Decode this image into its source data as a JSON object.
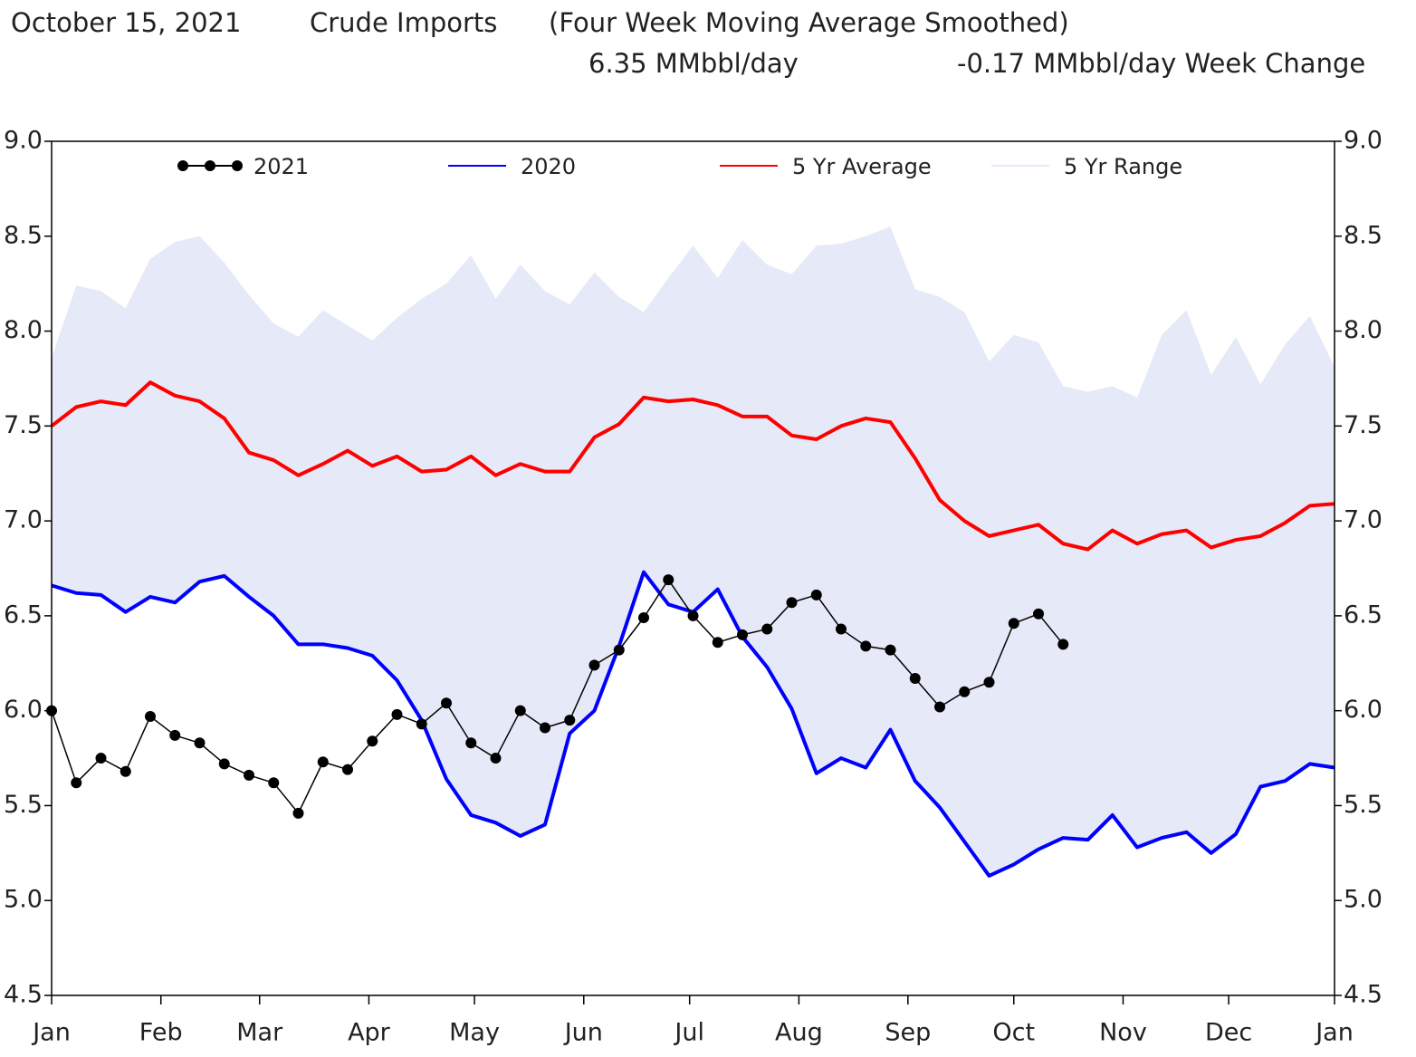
{
  "chart_data": {
    "type": "line",
    "header": {
      "date": "October 15, 2021",
      "title": "Crude Imports",
      "subtitle": "(Four Week Moving Average Smoothed)",
      "current": "6.35 MMbbl/day",
      "change": "-0.17 MMbbl/day Week Change"
    },
    "x": [
      0,
      1,
      2,
      3,
      4,
      5,
      6,
      7,
      8,
      9,
      10,
      11,
      12,
      13,
      14,
      15,
      16,
      17,
      18,
      19,
      20,
      21,
      22,
      23,
      24,
      25,
      26,
      27,
      28,
      29,
      30,
      31,
      32,
      33,
      34,
      35,
      36,
      37,
      38,
      39,
      40,
      41,
      42,
      43,
      44,
      45,
      46,
      47,
      48,
      49,
      50,
      51,
      52
    ],
    "xlim": [
      0,
      52
    ],
    "xticks": [
      {
        "value": 0,
        "label": "Jan"
      },
      {
        "value": 4.43,
        "label": "Feb"
      },
      {
        "value": 8.43,
        "label": "Mar"
      },
      {
        "value": 12.86,
        "label": "Apr"
      },
      {
        "value": 17.14,
        "label": "May"
      },
      {
        "value": 21.57,
        "label": "Jun"
      },
      {
        "value": 25.86,
        "label": "Jul"
      },
      {
        "value": 30.29,
        "label": "Aug"
      },
      {
        "value": 34.71,
        "label": "Sep"
      },
      {
        "value": 39,
        "label": "Oct"
      },
      {
        "value": 43.43,
        "label": "Nov"
      },
      {
        "value": 47.71,
        "label": "Dec"
      },
      {
        "value": 52,
        "label": "Jan"
      }
    ],
    "ylim": [
      4.5,
      9
    ],
    "yticks": [
      4.5,
      {
        "value": 5,
        "label": "5.0"
      },
      5.5,
      {
        "value": 6,
        "label": "6.0"
      },
      6.5,
      {
        "value": 7,
        "label": "7.0"
      },
      7.5,
      {
        "value": 8,
        "label": "8.0"
      },
      8.5,
      {
        "value": 9,
        "label": "9.0"
      }
    ],
    "series": [
      {
        "name": "2021",
        "color": "#000000",
        "values": [
          6.0,
          5.62,
          5.75,
          5.68,
          5.97,
          5.87,
          5.83,
          5.72,
          5.66,
          5.62,
          5.46,
          5.73,
          5.69,
          5.84,
          5.98,
          5.93,
          6.04,
          5.83,
          5.75,
          6.0,
          5.91,
          5.95,
          6.24,
          6.32,
          6.49,
          6.69,
          6.5,
          6.36,
          6.4,
          6.43,
          6.57,
          6.61,
          6.43,
          6.34,
          6.32,
          6.17,
          6.02,
          6.1,
          6.15,
          6.46,
          6.51,
          6.35,
          null,
          null,
          null,
          null,
          null,
          null,
          null,
          null,
          null,
          null,
          null
        ]
      },
      {
        "name": "2020",
        "color": "#0000ff",
        "values": [
          6.66,
          6.62,
          6.61,
          6.52,
          6.6,
          6.57,
          6.68,
          6.71,
          6.6,
          6.5,
          6.35,
          6.35,
          6.33,
          6.29,
          6.16,
          5.95,
          5.64,
          5.45,
          5.41,
          5.34,
          5.4,
          5.88,
          6.0,
          6.34,
          6.73,
          6.56,
          6.52,
          6.64,
          6.39,
          6.23,
          6.01,
          5.67,
          5.75,
          5.7,
          5.9,
          5.63,
          5.49,
          5.31,
          5.13,
          5.19,
          5.27,
          5.33,
          5.32,
          5.45,
          5.28,
          5.33,
          5.36,
          5.25,
          5.35,
          5.6,
          5.63,
          5.72,
          5.7
        ]
      },
      {
        "name": "5 Yr Average",
        "color": "#ff0000",
        "values": [
          7.5,
          7.6,
          7.63,
          7.61,
          7.73,
          7.66,
          7.63,
          7.54,
          7.36,
          7.32,
          7.24,
          7.3,
          7.37,
          7.29,
          7.34,
          7.26,
          7.27,
          7.34,
          7.24,
          7.3,
          7.26,
          7.26,
          7.44,
          7.51,
          7.65,
          7.63,
          7.64,
          7.61,
          7.55,
          7.55,
          7.45,
          7.43,
          7.5,
          7.54,
          7.52,
          7.33,
          7.11,
          7.0,
          6.92,
          6.95,
          6.98,
          6.88,
          6.85,
          6.95,
          6.88,
          6.93,
          6.95,
          6.86,
          6.9,
          6.92,
          6.99,
          7.08,
          7.09
        ]
      },
      {
        "name": "5 Yr Range",
        "color": "#e6e9f7",
        "values": [
          7.86,
          8.24,
          8.21,
          8.12,
          8.38,
          8.47,
          8.5,
          8.36,
          8.19,
          8.04,
          7.97,
          8.11,
          8.03,
          7.95,
          8.07,
          8.17,
          8.25,
          8.4,
          8.17,
          8.35,
          8.21,
          8.14,
          8.31,
          8.18,
          8.1,
          8.28,
          8.45,
          8.28,
          8.48,
          8.35,
          8.3,
          8.45,
          8.46,
          8.5,
          8.55,
          8.22,
          8.18,
          8.1,
          7.84,
          7.98,
          7.94,
          7.71,
          7.68,
          7.71,
          7.65,
          7.98,
          8.11,
          7.77,
          7.97,
          7.72,
          7.93,
          8.08,
          7.81
        ],
        "lower": [
          6.66,
          6.62,
          6.61,
          6.52,
          6.6,
          6.57,
          6.68,
          6.71,
          6.6,
          6.5,
          6.35,
          6.35,
          6.33,
          6.29,
          6.16,
          5.95,
          5.64,
          5.45,
          5.41,
          5.34,
          5.4,
          5.88,
          6.0,
          6.34,
          6.73,
          6.56,
          6.52,
          6.64,
          6.39,
          6.23,
          6.01,
          5.67,
          5.75,
          5.7,
          5.9,
          5.63,
          5.49,
          5.31,
          5.13,
          5.19,
          5.27,
          5.33,
          5.32,
          5.45,
          5.28,
          5.33,
          5.36,
          5.25,
          5.35,
          5.6,
          5.63,
          5.72,
          5.7
        ]
      }
    ],
    "legend": "top"
  }
}
